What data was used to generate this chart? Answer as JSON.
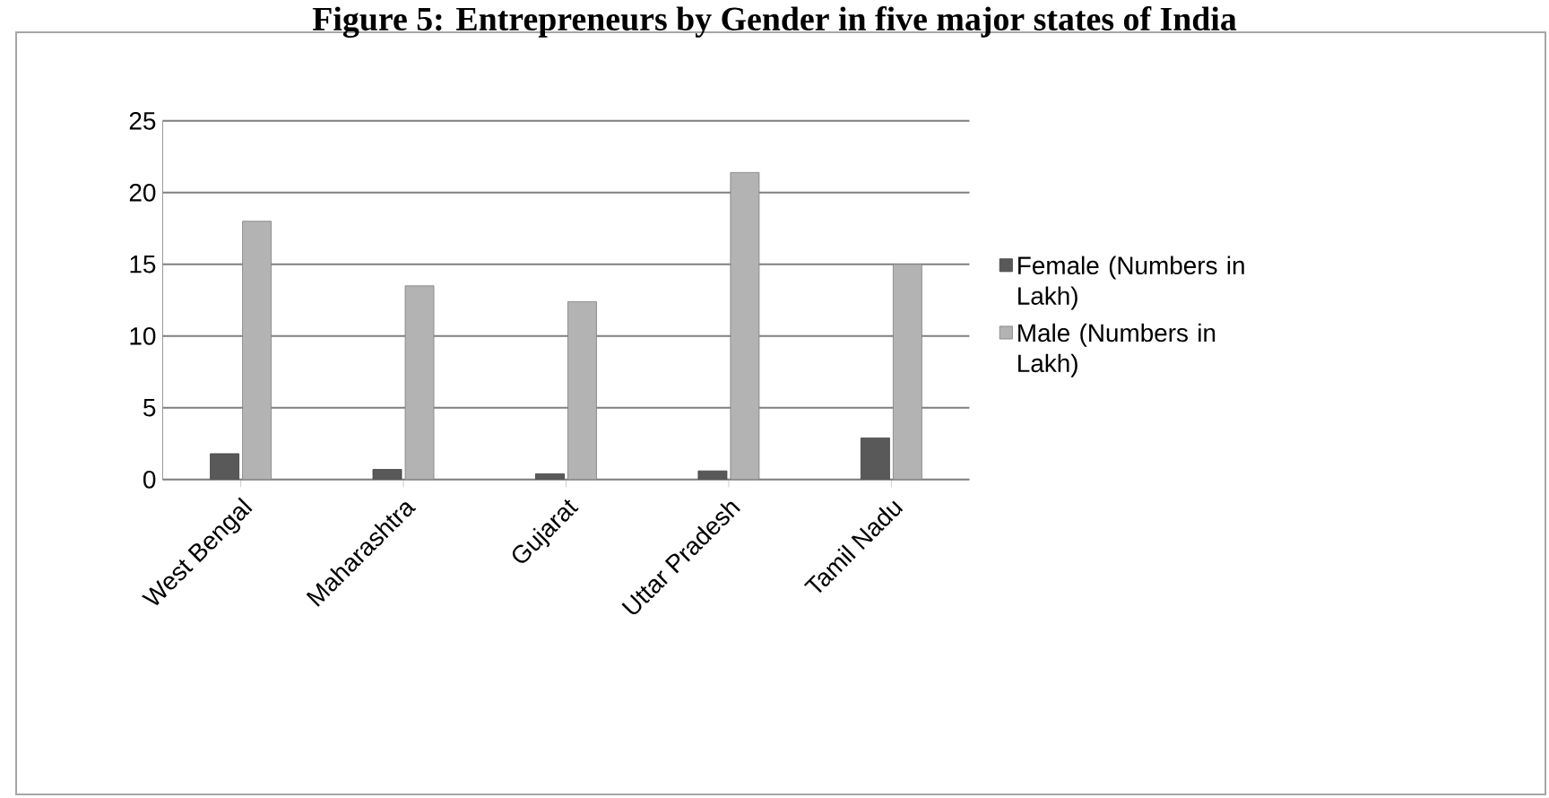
{
  "chart_data": {
    "type": "bar",
    "title": "Figure 5: Entrepreneurs by Gender in five major states of India",
    "categories": [
      "West Bengal",
      "Maharashtra",
      "Gujarat",
      "Uttar Pradesh",
      "Tamil Nadu"
    ],
    "series": [
      {
        "name": "Female (Numbers in Lakh)",
        "color": "#595959",
        "values": [
          1.8,
          0.7,
          0.4,
          0.6,
          2.9
        ]
      },
      {
        "name": "Male (Numbers in Lakh)",
        "color": "#b3b3b3",
        "values": [
          18,
          13.5,
          12.4,
          21.4,
          15
        ]
      }
    ],
    "ylim": [
      0,
      25
    ],
    "yticks": [
      0,
      5,
      10,
      15,
      20,
      25
    ],
    "grid": "y",
    "legend": "right"
  }
}
